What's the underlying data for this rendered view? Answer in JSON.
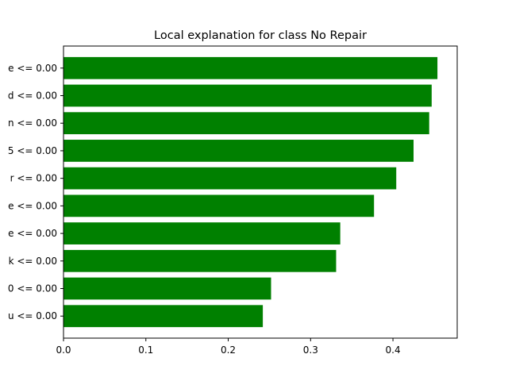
{
  "chart_data": {
    "type": "bar",
    "orientation": "horizontal",
    "title": "Local explanation for class No Repair",
    "xlabel": "",
    "ylabel": "",
    "xlim": [
      0,
      0.478
    ],
    "xticks": [
      "0.0",
      "0.1",
      "0.2",
      "0.3",
      "0.4"
    ],
    "categories": [
      "e <= 0.00",
      "d <= 0.00",
      "n <= 0.00",
      "5 <= 0.00",
      "r <= 0.00",
      "e <= 0.00",
      "e <= 0.00",
      "k <= 0.00",
      "0 <= 0.00",
      "u <= 0.00"
    ],
    "values": [
      0.454,
      0.447,
      0.444,
      0.425,
      0.404,
      0.377,
      0.336,
      0.331,
      0.252,
      0.242
    ],
    "bar_color": "#008000",
    "grid": false
  }
}
